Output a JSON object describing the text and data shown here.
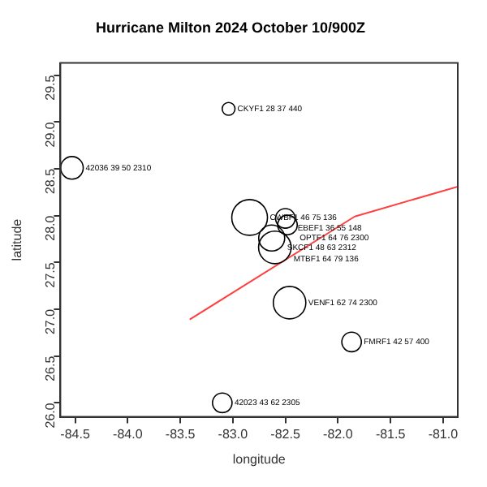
{
  "chart_data": {
    "type": "scatter",
    "title": "Hurricane Milton 2024 October 10/900Z",
    "xlabel": "longitude",
    "ylabel": "latitude",
    "xlim": [
      -84.64,
      -80.86
    ],
    "ylim": [
      25.85,
      29.63
    ],
    "xticks": [
      -84.5,
      {
        "value": -84,
        "label": "-84.0"
      },
      -83.5,
      {
        "value": -83,
        "label": "-83.0"
      },
      -82.5,
      {
        "value": -82,
        "label": "-82.0"
      },
      -81.5,
      {
        "value": -81,
        "label": "-81.0"
      }
    ],
    "yticks": [
      {
        "value": 26,
        "label": "26.0"
      },
      26.5,
      {
        "value": 27,
        "label": "27.0"
      },
      27.5,
      {
        "value": 28,
        "label": "28.0"
      },
      28.5,
      {
        "value": 29,
        "label": "29.0"
      },
      29.5
    ],
    "grid": false,
    "legend": false,
    "series": [
      {
        "color": "#000000",
        "marker": "circle",
        "x": [
          -83.04,
          -84.53,
          -82.84,
          -82.5,
          -82.48,
          -82.63,
          -82.6,
          -82.46,
          -81.87,
          -83.1
        ],
        "values": [
          29.14,
          28.51,
          27.98,
          27.97,
          27.9,
          27.76,
          27.66,
          27.07,
          26.65,
          26.0
        ],
        "sizes": [
          0.13,
          0.4,
          1,
          0.3,
          0.3,
          0.53,
          0.83,
          0.83,
          0.3,
          0.3
        ],
        "value_labels": [
          "CKYF1 28 37 440",
          "42036 39 50 2310",
          "CWBF1 46 75 136",
          "EBEF1 36 55 148",
          "OPTF1 64 76 2300",
          "SKCF1 48 63 2312",
          "MTBF1 64 79 136",
          "VENF1 62 74 2300",
          "FMRF1 42 57 400",
          "42023 43 62 2305"
        ]
      },
      {
        "type": "line",
        "color": "#ff4040",
        "x": [
          -83.41,
          -81.84,
          -80.86
        ],
        "values": [
          26.89,
          27.99,
          28.31
        ]
      }
    ]
  }
}
